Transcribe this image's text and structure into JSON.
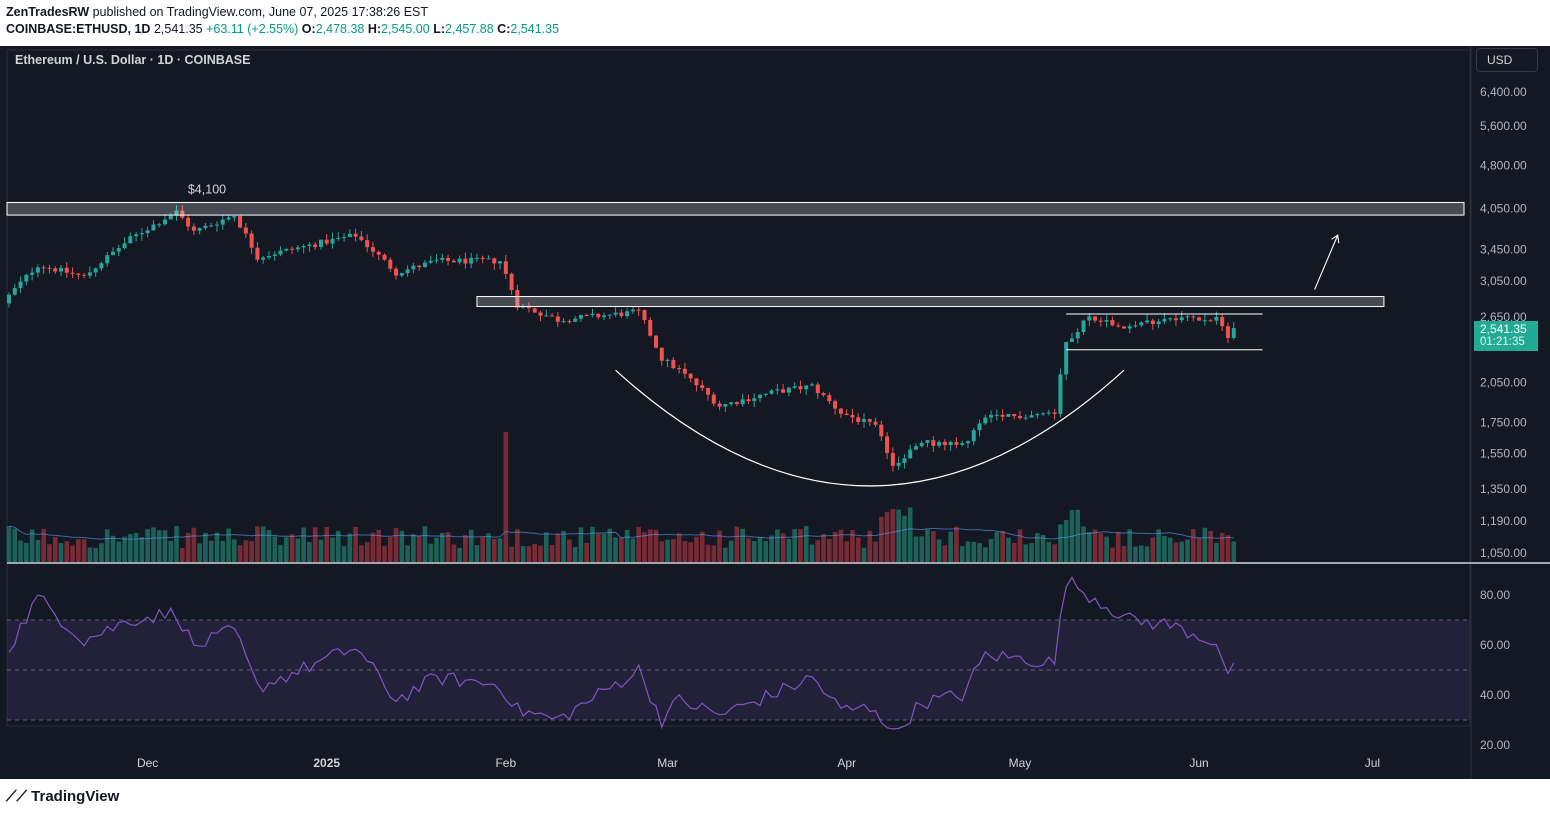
{
  "header": {
    "author": "ZenTradesRW",
    "published_text": "published on TradingView.com, June 07, 2025 17:38:26 EST",
    "symbol": "COINBASE:ETHUSD, 1D",
    "last": "2,541.35",
    "change": "+63.11 (+2.55%)",
    "o_label": "O:",
    "o_value": "2,478.38",
    "h_label": "H:",
    "h_value": "2,545.00",
    "l_label": "L:",
    "l_value": "2,457.88",
    "c_label": "C:",
    "c_value": "2,541.35"
  },
  "pair_title": "Ethereum / U.S. Dollar · 1D · COINBASE",
  "currency": "USD",
  "price_tag": {
    "price": "2,541.35",
    "countdown": "01:21:35"
  },
  "brand": "TradingView",
  "colors": {
    "up": "#26a69a",
    "down": "#ef5350",
    "background": "#141823",
    "rsi": "#7e57c2"
  },
  "chart_data": {
    "type": "candlestick",
    "symbol": "ETHUSD",
    "interval": "1D",
    "x_range": [
      "2024-11-07",
      "2025-06-07"
    ],
    "y_scale": "log",
    "y_ticks": [
      "6,400.00",
      "5,600.00",
      "4,800.00",
      "4,050.00",
      "3,450.00",
      "3,050.00",
      "2,650.00",
      "2,050.00",
      "1,750.00",
      "1,550.00",
      "1,350.00",
      "1,190.00",
      "1,050.00"
    ],
    "x_ticks": [
      "Dec",
      "2025",
      "Feb",
      "Mar",
      "Apr",
      "May",
      "Jun",
      "Jul"
    ],
    "candle_anchors": [
      [
        "2024-11-07",
        2880
      ],
      [
        "2024-11-12",
        3250
      ],
      [
        "2024-11-20",
        3100
      ],
      [
        "2024-11-28",
        3600
      ],
      [
        "2024-12-06",
        4000
      ],
      [
        "2024-12-09",
        3700
      ],
      [
        "2024-12-16",
        3950
      ],
      [
        "2024-12-20",
        3350
      ],
      [
        "2025-01-06",
        3650
      ],
      [
        "2025-01-13",
        3150
      ],
      [
        "2025-01-20",
        3300
      ],
      [
        "2025-01-31",
        3300
      ],
      [
        "2025-02-03",
        2780
      ],
      [
        "2025-02-10",
        2620
      ],
      [
        "2025-02-24",
        2700
      ],
      [
        "2025-02-28",
        2250
      ],
      [
        "2025-03-03",
        2150
      ],
      [
        "2025-03-10",
        1870
      ],
      [
        "2025-03-20",
        1980
      ],
      [
        "2025-03-26",
        2020
      ],
      [
        "2025-03-31",
        1820
      ],
      [
        "2025-04-06",
        1720
      ],
      [
        "2025-04-09",
        1480
      ],
      [
        "2025-04-14",
        1620
      ],
      [
        "2025-04-21",
        1600
      ],
      [
        "2025-04-25",
        1780
      ],
      [
        "2025-05-07",
        1820
      ],
      [
        "2025-05-09",
        2400
      ],
      [
        "2025-05-13",
        2650
      ],
      [
        "2025-05-20",
        2550
      ],
      [
        "2025-05-27",
        2650
      ],
      [
        "2025-06-04",
        2620
      ],
      [
        "2025-06-06",
        2470
      ],
      [
        "2025-06-07",
        2541
      ]
    ],
    "annotations": {
      "resistance_label": "$4,100",
      "resistance_zone": [
        3950,
        4150
      ],
      "neckline_zone": [
        2760,
        2870
      ],
      "consolidation_range": [
        2330,
        2680
      ],
      "cup_pattern": true,
      "projection_arrow": true
    },
    "volume": {
      "shown": true,
      "ma_line": true
    },
    "rsi": {
      "y_ticks": [
        "80.00",
        "60.00",
        "40.00",
        "20.00"
      ],
      "levels": [
        70,
        50,
        30
      ],
      "anchors": [
        [
          "2024-11-07",
          59
        ],
        [
          "2024-11-12",
          79
        ],
        [
          "2024-11-20",
          62
        ],
        [
          "2024-11-28",
          70
        ],
        [
          "2024-12-06",
          73
        ],
        [
          "2024-12-09",
          59
        ],
        [
          "2024-12-16",
          66
        ],
        [
          "2024-12-20",
          43
        ],
        [
          "2025-01-06",
          59
        ],
        [
          "2025-01-13",
          38
        ],
        [
          "2025-01-20",
          47
        ],
        [
          "2025-01-31",
          44
        ],
        [
          "2025-02-03",
          34
        ],
        [
          "2025-02-10",
          30
        ],
        [
          "2025-02-24",
          50
        ],
        [
          "2025-02-28",
          30
        ],
        [
          "2025-03-03",
          38
        ],
        [
          "2025-03-10",
          32
        ],
        [
          "2025-03-20",
          41
        ],
        [
          "2025-03-26",
          47
        ],
        [
          "2025-03-31",
          34
        ],
        [
          "2025-04-06",
          35
        ],
        [
          "2025-04-09",
          24
        ],
        [
          "2025-04-14",
          37
        ],
        [
          "2025-04-21",
          40
        ],
        [
          "2025-04-25",
          56
        ],
        [
          "2025-05-07",
          53
        ],
        [
          "2025-05-09",
          86
        ],
        [
          "2025-05-13",
          80
        ],
        [
          "2025-05-20",
          70
        ],
        [
          "2025-05-27",
          68
        ],
        [
          "2025-06-04",
          61
        ],
        [
          "2025-06-06",
          46
        ],
        [
          "2025-06-07",
          54
        ]
      ]
    }
  }
}
